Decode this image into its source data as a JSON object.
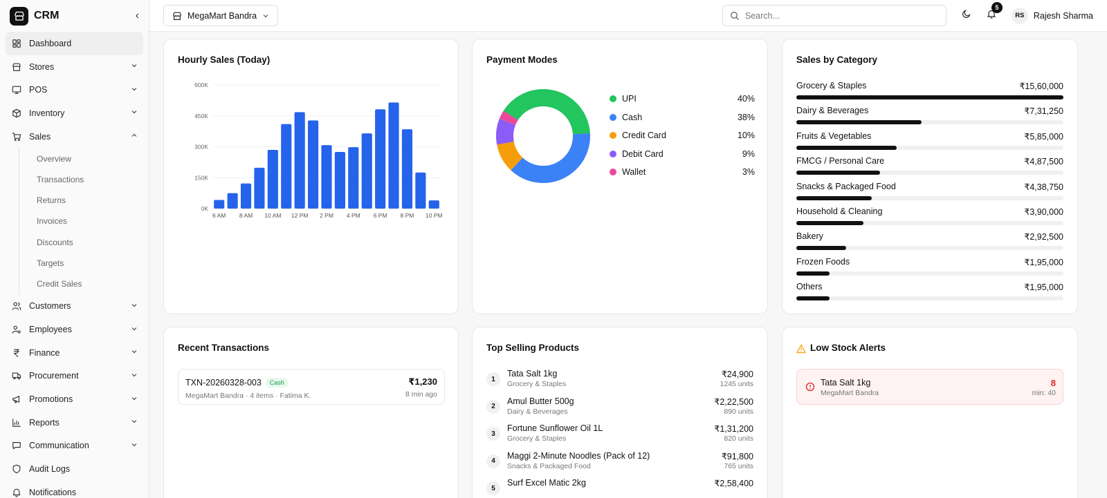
{
  "brand": {
    "title": "CRM"
  },
  "sidebar": {
    "items": [
      {
        "label": "Dashboard",
        "icon": "dashboard-icon"
      },
      {
        "label": "Stores",
        "icon": "store-icon"
      },
      {
        "label": "POS",
        "icon": "monitor-icon"
      },
      {
        "label": "Inventory",
        "icon": "box-icon"
      },
      {
        "label": "Sales",
        "icon": "cart-icon"
      },
      {
        "label": "Customers",
        "icon": "users-icon"
      },
      {
        "label": "Employees",
        "icon": "user-cog-icon"
      },
      {
        "label": "Finance",
        "icon": "rupee-icon"
      },
      {
        "label": "Procurement",
        "icon": "truck-icon"
      },
      {
        "label": "Promotions",
        "icon": "megaphone-icon"
      },
      {
        "label": "Reports",
        "icon": "bar-chart-icon"
      },
      {
        "label": "Communication",
        "icon": "message-icon"
      },
      {
        "label": "Audit Logs",
        "icon": "shield-icon"
      },
      {
        "label": "Notifications",
        "icon": "bell-icon"
      }
    ],
    "sales_sub": [
      "Overview",
      "Transactions",
      "Returns",
      "Invoices",
      "Discounts",
      "Targets",
      "Credit Sales"
    ]
  },
  "header": {
    "store": "MegaMart Bandra",
    "search_placeholder": "Search...",
    "notif_count": "5",
    "user_initials": "RS",
    "user_name": "Rajesh Sharma"
  },
  "cards": {
    "hourly_title": "Hourly Sales (Today)",
    "payment_title": "Payment Modes",
    "category_title": "Sales by Category",
    "txn_title": "Recent Transactions",
    "products_title": "Top Selling Products",
    "lowstock_title": "Low Stock Alerts"
  },
  "chart_data": [
    {
      "type": "bar",
      "title": "Hourly Sales (Today)",
      "x": [
        "6 AM",
        "7 AM",
        "8 AM",
        "9 AM",
        "10 AM",
        "11 AM",
        "12 PM",
        "1 PM",
        "2 PM",
        "3 PM",
        "4 PM",
        "5 PM",
        "6 PM",
        "7 PM",
        "8 PM",
        "9 PM",
        "10 PM"
      ],
      "x_tick_labels": [
        "6 AM",
        "8 AM",
        "10 AM",
        "12 PM",
        "2 PM",
        "4 PM",
        "6 PM",
        "8 PM",
        "10 PM"
      ],
      "values": [
        42000,
        75000,
        122000,
        198000,
        285000,
        410000,
        468000,
        428000,
        308000,
        275000,
        298000,
        365000,
        482000,
        515000,
        385000,
        175000,
        40000
      ],
      "ylim": [
        0,
        600000
      ],
      "y_tick_labels": [
        "0K",
        "150K",
        "300K",
        "450K",
        "600K"
      ],
      "color": "#2563eb"
    },
    {
      "type": "pie",
      "title": "Payment Modes",
      "donut": true,
      "slices": [
        {
          "label": "UPI",
          "value": 40,
          "pct": "40%",
          "color": "#22c55e"
        },
        {
          "label": "Cash",
          "value": 38,
          "pct": "38%",
          "color": "#3b82f6"
        },
        {
          "label": "Credit Card",
          "value": 10,
          "pct": "10%",
          "color": "#f59e0b"
        },
        {
          "label": "Debit Card",
          "value": 9,
          "pct": "9%",
          "color": "#8b5cf6"
        },
        {
          "label": "Wallet",
          "value": 3,
          "pct": "3%",
          "color": "#ec4899"
        }
      ]
    },
    {
      "type": "bar",
      "title": "Sales by Category",
      "orientation": "horizontal",
      "categories": [
        "Grocery & Staples",
        "Dairy & Beverages",
        "Fruits & Vegetables",
        "FMCG / Personal Care",
        "Snacks & Packaged Food",
        "Household & Cleaning",
        "Bakery",
        "Frozen Foods",
        "Others"
      ],
      "values": [
        1560000,
        731250,
        585000,
        487500,
        438750,
        390000,
        292500,
        195000,
        195000
      ],
      "value_labels": [
        "₹15,60,000",
        "₹7,31,250",
        "₹5,85,000",
        "₹4,87,500",
        "₹4,38,750",
        "₹3,90,000",
        "₹2,92,500",
        "₹1,95,000",
        "₹1,95,000"
      ]
    }
  ],
  "transactions": [
    {
      "id": "TXN-20260328-003",
      "mode": "Cash",
      "meta": "MegaMart Bandra · 4 items · Fatima K.",
      "amount": "₹1,230",
      "ago": "8 min ago"
    }
  ],
  "products": [
    {
      "rank": "1",
      "name": "Tata Salt 1kg",
      "category": "Grocery & Staples",
      "value": "₹24,900",
      "units": "1245 units"
    },
    {
      "rank": "2",
      "name": "Amul Butter 500g",
      "category": "Dairy & Beverages",
      "value": "₹2,22,500",
      "units": "890 units"
    },
    {
      "rank": "3",
      "name": "Fortune Sunflower Oil 1L",
      "category": "Grocery & Staples",
      "value": "₹1,31,200",
      "units": "820 units"
    },
    {
      "rank": "4",
      "name": "Maggi 2-Minute Noodles (Pack of 12)",
      "category": "Snacks & Packaged Food",
      "value": "₹91,800",
      "units": "765 units"
    },
    {
      "rank": "5",
      "name": "Surf Excel Matic 2kg",
      "category": "",
      "value": "₹2,58,400",
      "units": ""
    }
  ],
  "low_stock": [
    {
      "name": "Tata Salt 1kg",
      "store": "MegaMart Bandra",
      "qty": "8",
      "min": "min: 40"
    }
  ]
}
